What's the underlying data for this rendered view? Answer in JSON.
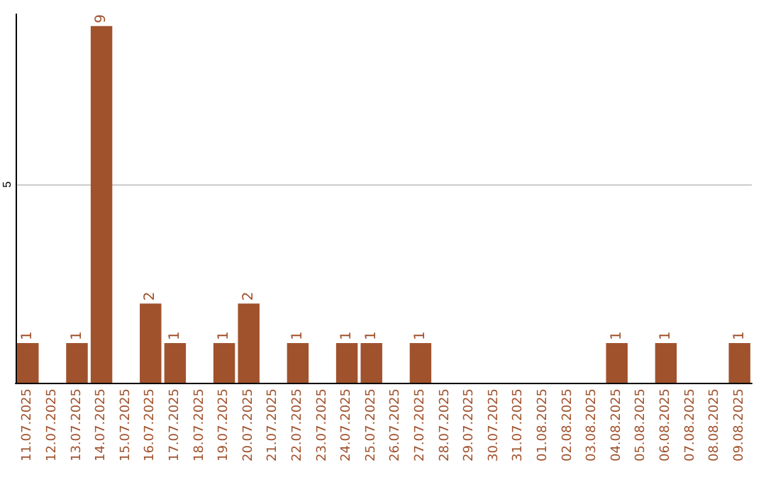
{
  "chart_data": {
    "type": "bar",
    "categories": [
      "11.07.2025",
      "12.07.2025",
      "13.07.2025",
      "14.07.2025",
      "15.07.2025",
      "16.07.2025",
      "17.07.2025",
      "18.07.2025",
      "19.07.2025",
      "20.07.2025",
      "21.07.2025",
      "22.07.2025",
      "23.07.2025",
      "24.07.2025",
      "25.07.2025",
      "26.07.2025",
      "27.07.2025",
      "28.07.2025",
      "29.07.2025",
      "30.07.2025",
      "31.07.2025",
      "01.08.2025",
      "02.08.2025",
      "03.08.2025",
      "04.08.2025",
      "05.08.2025",
      "06.08.2025",
      "07.08.2025",
      "08.08.2025",
      "09.08.2025"
    ],
    "values": [
      1,
      0,
      1,
      9,
      0,
      2,
      1,
      0,
      1,
      2,
      0,
      1,
      0,
      1,
      1,
      0,
      1,
      0,
      0,
      0,
      0,
      0,
      0,
      0,
      1,
      0,
      1,
      0,
      0,
      1
    ],
    "value_labels": [
      "1",
      null,
      "1",
      "9",
      null,
      "2",
      "1",
      null,
      "1",
      "2",
      null,
      "1",
      null,
      "1",
      "1",
      null,
      "1",
      null,
      null,
      null,
      null,
      null,
      null,
      null,
      "1",
      null,
      "1",
      null,
      null,
      "1"
    ],
    "color": "#a0522d",
    "ylim": [
      0,
      9.3
    ],
    "yticks": [
      5
    ],
    "grid": "y"
  }
}
